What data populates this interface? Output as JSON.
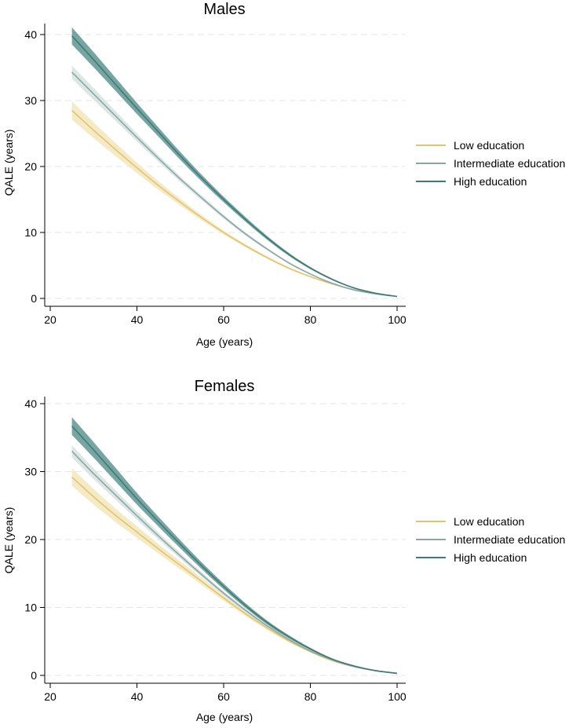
{
  "chart_data": [
    {
      "type": "line",
      "title": "Males",
      "xlabel": "Age (years)",
      "ylabel": "QALE (years)",
      "xlim": [
        20,
        100
      ],
      "ylim": [
        0,
        40
      ],
      "xticks": [
        "20",
        "40",
        "60",
        "80",
        "100"
      ],
      "yticks": [
        "0",
        "10",
        "20",
        "30",
        "40"
      ],
      "grid": true,
      "legend_position": "right",
      "x": [
        25,
        30,
        35,
        40,
        45,
        50,
        55,
        60,
        65,
        70,
        75,
        80,
        85,
        90,
        95,
        100
      ],
      "series": [
        {
          "name": "Low education",
          "color": "#e0c46e",
          "band_color": "#f3e6bc",
          "values": [
            28.5,
            25.5,
            22.6,
            19.8,
            17.1,
            14.6,
            12.2,
            10.0,
            8.0,
            6.2,
            4.6,
            3.3,
            2.2,
            1.3,
            0.7,
            0.3
          ],
          "band_halfwidth": [
            1.4,
            1.2,
            1.0,
            0.8,
            0.65,
            0.5,
            0.4,
            0.3,
            0.25,
            0.2,
            0.15,
            0.1,
            0.08,
            0.06,
            0.05,
            0.04
          ]
        },
        {
          "name": "Intermediate education",
          "color": "#8aa7a3",
          "band_color": "#d6e2e0",
          "values": [
            34.3,
            31.0,
            27.7,
            24.4,
            21.2,
            18.1,
            15.2,
            12.4,
            9.8,
            7.5,
            5.4,
            3.7,
            2.3,
            1.3,
            0.7,
            0.3
          ],
          "band_halfwidth": [
            1.0,
            0.9,
            0.75,
            0.6,
            0.5,
            0.4,
            0.35,
            0.3,
            0.25,
            0.2,
            0.15,
            0.1,
            0.08,
            0.06,
            0.05,
            0.04
          ]
        },
        {
          "name": "High education",
          "color": "#3f7a75",
          "band_color": "#5f9792",
          "values": [
            39.8,
            36.2,
            32.5,
            28.8,
            25.2,
            21.6,
            18.2,
            15.0,
            12.0,
            9.2,
            6.7,
            4.6,
            2.9,
            1.6,
            0.8,
            0.3
          ],
          "band_halfwidth": [
            1.3,
            1.15,
            1.0,
            0.85,
            0.7,
            0.6,
            0.5,
            0.42,
            0.35,
            0.28,
            0.22,
            0.16,
            0.12,
            0.08,
            0.06,
            0.04
          ]
        }
      ]
    },
    {
      "type": "line",
      "title": "Females",
      "xlabel": "Age (years)",
      "ylabel": "QALE (years)",
      "xlim": [
        20,
        100
      ],
      "ylim": [
        0,
        40
      ],
      "xticks": [
        "20",
        "40",
        "60",
        "80",
        "100"
      ],
      "yticks": [
        "0",
        "10",
        "20",
        "30",
        "40"
      ],
      "grid": true,
      "legend_position": "right",
      "x": [
        25,
        30,
        35,
        40,
        45,
        50,
        55,
        60,
        65,
        70,
        75,
        80,
        85,
        90,
        95,
        100
      ],
      "series": [
        {
          "name": "Low education",
          "color": "#e0c46e",
          "band_color": "#f3e6bc",
          "values": [
            29.2,
            26.3,
            23.6,
            21.1,
            18.6,
            16.2,
            13.8,
            11.4,
            9.1,
            7.0,
            5.1,
            3.5,
            2.2,
            1.3,
            0.7,
            0.3
          ],
          "band_halfwidth": [
            1.3,
            1.15,
            1.0,
            0.85,
            0.7,
            0.6,
            0.5,
            0.42,
            0.35,
            0.28,
            0.22,
            0.16,
            0.12,
            0.08,
            0.06,
            0.04
          ]
        },
        {
          "name": "Intermediate education",
          "color": "#8aa7a3",
          "band_color": "#d6e2e0",
          "values": [
            33.0,
            29.7,
            26.6,
            23.5,
            20.5,
            17.6,
            14.8,
            12.1,
            9.6,
            7.3,
            5.3,
            3.6,
            2.3,
            1.3,
            0.7,
            0.3
          ],
          "band_halfwidth": [
            0.9,
            0.8,
            0.7,
            0.6,
            0.5,
            0.42,
            0.35,
            0.3,
            0.25,
            0.2,
            0.16,
            0.12,
            0.09,
            0.07,
            0.05,
            0.04
          ]
        },
        {
          "name": "High education",
          "color": "#3f7a75",
          "band_color": "#5f9792",
          "values": [
            36.7,
            33.2,
            29.6,
            26.0,
            22.6,
            19.3,
            16.1,
            13.1,
            10.3,
            7.8,
            5.7,
            3.9,
            2.4,
            1.4,
            0.7,
            0.3
          ],
          "band_halfwidth": [
            1.3,
            1.15,
            1.0,
            0.85,
            0.72,
            0.6,
            0.5,
            0.42,
            0.35,
            0.28,
            0.22,
            0.16,
            0.12,
            0.08,
            0.06,
            0.04
          ]
        }
      ]
    }
  ]
}
